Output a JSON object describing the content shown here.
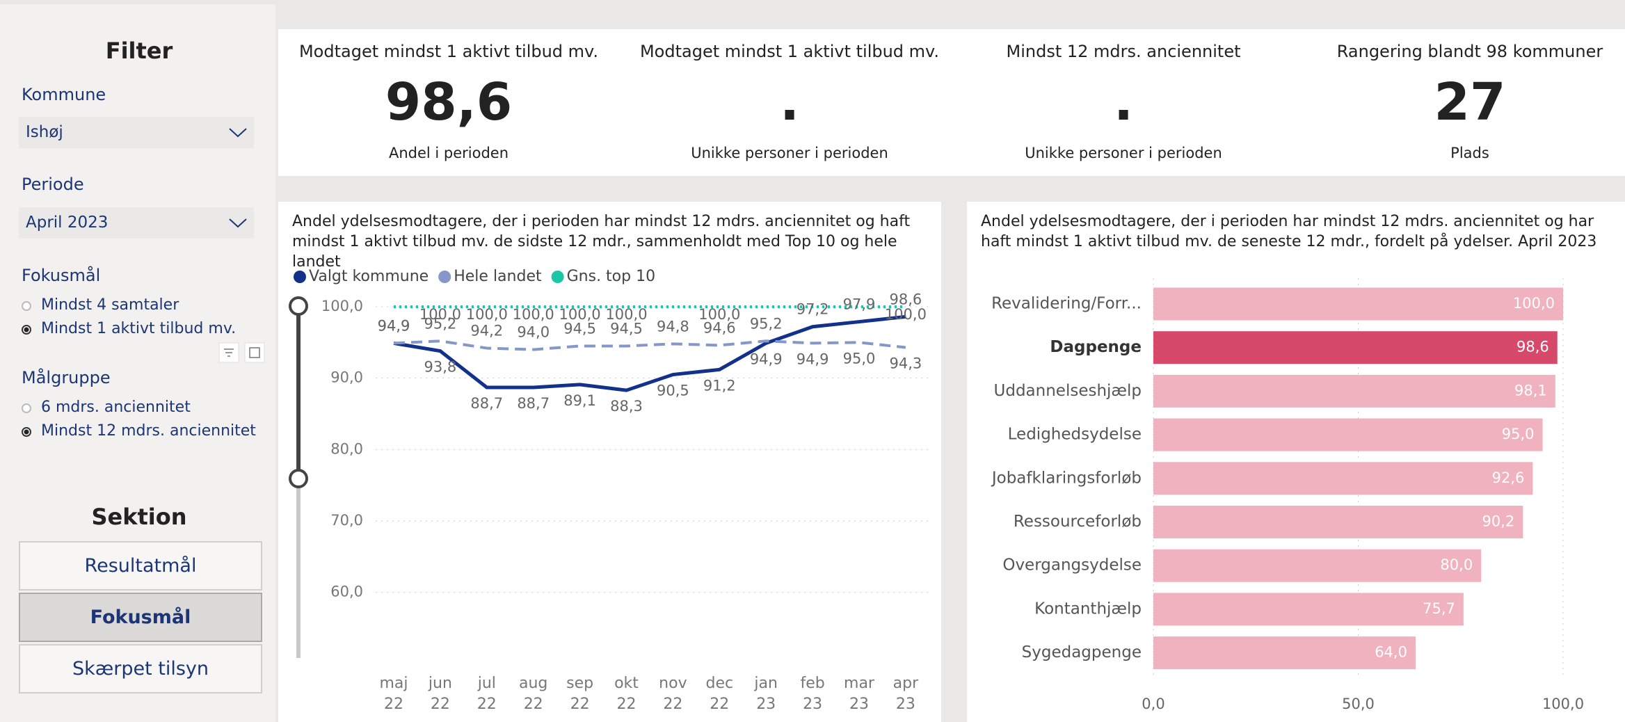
{
  "filter": {
    "title": "Filter",
    "kommune_label": "Kommune",
    "kommune": "Ishøj",
    "periode_label": "Periode",
    "periode": "April 2023",
    "fokus_label": "Fokusmål",
    "fokus_options": [
      "Mindst 4 samtaler",
      "Mindst 1 aktivt tilbud mv."
    ],
    "fokus_selected": 1,
    "maal_label": "Målgruppe",
    "maal_options": [
      "6 mdrs. anciennitet",
      "Mindst 12 mdrs. anciennitet"
    ],
    "maal_selected": 1
  },
  "sektion": {
    "title": "Sektion",
    "buttons": [
      "Resultatmål",
      "Fokusmål",
      "Skærpet tilsyn"
    ],
    "selected": 1
  },
  "kpis": [
    {
      "title": "Modtaget mindst 1 aktivt tilbud mv.",
      "value": "98,6",
      "subtitle": "Andel i perioden"
    },
    {
      "title": "Modtaget mindst 1 aktivt tilbud mv.",
      "value": ".",
      "subtitle": "Unikke personer i perioden"
    },
    {
      "title": "Mindst 12 mdrs. anciennitet",
      "value": ".",
      "subtitle": "Unikke personer i perioden"
    },
    {
      "title": "Rangering blandt 98 kommuner",
      "value": "27",
      "subtitle": "Plads"
    }
  ],
  "chart_data": [
    {
      "type": "line",
      "title": "Andel ydelsesmodtagere, der i perioden har mindst 12 mdrs. anciennitet og haft mindst 1 aktivt tilbud mv. de sidste 12 mdr., sammenholdt med Top 10 og hele landet",
      "categories": [
        "maj 22",
        "jun 22",
        "jul 22",
        "aug 22",
        "sep 22",
        "okt 22",
        "nov 22",
        "dec 22",
        "jan 23",
        "feb 23",
        "mar 23",
        "apr 23"
      ],
      "series": [
        {
          "name": "Valgt kommune",
          "color": "#12318a",
          "line_style": "solid",
          "values": [
            94.9,
            93.8,
            88.7,
            88.7,
            89.1,
            88.3,
            90.5,
            91.2,
            94.9,
            97.2,
            97.9,
            98.6
          ],
          "value_labels": [
            "94,9",
            "93,8",
            "88,7",
            "88,7",
            "89,1",
            "88,3",
            "90,5",
            "91,2",
            "94,9",
            "97,2",
            "97,9",
            "98,6"
          ]
        },
        {
          "name": "Hele landet",
          "color": "#8497c8",
          "line_style": "dashed",
          "values": [
            94.9,
            95.2,
            94.2,
            94.0,
            94.5,
            94.5,
            94.8,
            94.6,
            95.2,
            94.9,
            95.0,
            94.3
          ],
          "value_labels": [
            "94,9",
            "95,2",
            "94,2",
            "94,0",
            "94,5",
            "94,5",
            "94,8",
            "94,6",
            "95,2",
            "94,9",
            "95,0",
            "94,3"
          ]
        },
        {
          "name": "Gns. top 10",
          "color": "#1bc6a8",
          "line_style": "dotted",
          "values": [
            100,
            100,
            100,
            100,
            100,
            100,
            100,
            100,
            100,
            100,
            100,
            100
          ],
          "value_labels": [
            null,
            "100,0",
            "100,0",
            "100,0",
            "100,0",
            "100,0",
            null,
            "100,0",
            null,
            null,
            null,
            "100,0"
          ]
        }
      ],
      "ylim": [
        51,
        100
      ],
      "yticks": [
        {
          "value": 60,
          "label": "60,0"
        },
        {
          "value": 70,
          "label": "70,0"
        },
        {
          "value": 80,
          "label": "80,0"
        },
        {
          "value": 90,
          "label": "90,0"
        },
        {
          "value": 100,
          "label": "100,0"
        }
      ],
      "grid": true
    },
    {
      "type": "hbar",
      "title": "Andel ydelsesmodtagere, der i perioden har mindst 12 mdrs. anciennitet og har haft mindst 1 aktivt tilbud mv. de seneste 12 mdr., fordelt på ydelser. April 2023",
      "categories": [
        "Revalidering/Forr...",
        "Dagpenge",
        "Uddannelseshjælp",
        "Ledighedsydelse",
        "Jobafklaringsforløb",
        "Ressourceforløb",
        "Overgangsydelse",
        "Kontanthjælp",
        "Sygedagpenge"
      ],
      "values": [
        100.0,
        98.6,
        98.1,
        95.0,
        92.6,
        90.2,
        80.0,
        75.7,
        64.0
      ],
      "value_labels": [
        "100,0",
        "98,6",
        "98,1",
        "95,0",
        "92,6",
        "90,2",
        "80,0",
        "75,7",
        "64,0"
      ],
      "color": "#efb2be",
      "highlight_color": "#d6496a",
      "highlight": 1,
      "xlim": [
        0,
        100
      ],
      "xticks": [
        {
          "value": 0,
          "label": "0,0"
        },
        {
          "value": 50,
          "label": "50,0"
        },
        {
          "value": 100,
          "label": "100,0"
        }
      ],
      "grid": true
    }
  ]
}
